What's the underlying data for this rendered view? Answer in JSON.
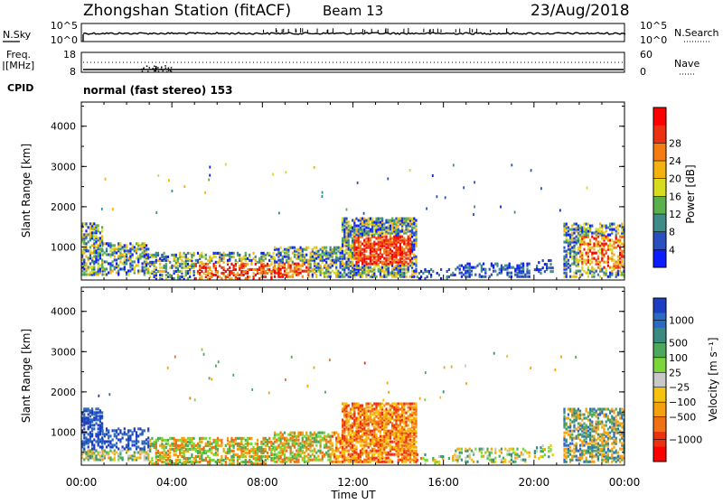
{
  "header": {
    "station": "Zhongshan Station (fitACF)",
    "beam": "Beam 13",
    "date": "23/Aug/2018"
  },
  "panel_nsky": {
    "label": "N.Sky",
    "left_ticks": [
      "10^5",
      "10^0"
    ],
    "right_label": "N.Search",
    "right_ticks": [
      "10^5",
      "10^0"
    ]
  },
  "panel_freq": {
    "label_line1": "Freq.",
    "label_line2": "[MHz]",
    "left_ticks": [
      "18",
      "8"
    ],
    "right_label": "Nave",
    "right_ticks": [
      "60",
      "0"
    ]
  },
  "cpid": {
    "label": "CPID",
    "value": "normal (fast stereo) 153"
  },
  "chart_data": [
    {
      "type": "heatmap",
      "name": "power",
      "xlabel": "Time UT",
      "ylabel": "Slant Range [km]",
      "x_ticks": [
        "00:00",
        "04:00",
        "08:00",
        "12:00",
        "16:00",
        "20:00",
        "00:00"
      ],
      "x_tick_hours": [
        0,
        4,
        8,
        12,
        16,
        20,
        24
      ],
      "xlim_hours": [
        0,
        24
      ],
      "y_ticks": [
        "1000",
        "2000",
        "3000",
        "4000"
      ],
      "y_tick_values": [
        1000,
        2000,
        3000,
        4000
      ],
      "ylim": [
        180,
        4600
      ],
      "colorbar_label": "Power [dB]",
      "colorbar_ticks": [
        "4",
        "8",
        "12",
        "16",
        "20",
        "24",
        "28"
      ],
      "colorbar_colors": [
        "#0a1eff",
        "#2a4fc0",
        "#3e8c8a",
        "#5ab04a",
        "#d8dc1e",
        "#f5b20e",
        "#f47c10",
        "#ec3010",
        "#ff0000"
      ]
    },
    {
      "type": "heatmap",
      "name": "velocity",
      "xlabel": "Time UT",
      "ylabel": "Slant Range [km]",
      "x_ticks": [
        "00:00",
        "04:00",
        "08:00",
        "12:00",
        "16:00",
        "20:00",
        "00:00"
      ],
      "x_tick_hours": [
        0,
        4,
        8,
        12,
        16,
        20,
        24
      ],
      "xlim_hours": [
        0,
        24
      ],
      "y_ticks": [
        "1000",
        "2000",
        "3000",
        "4000"
      ],
      "y_tick_values": [
        1000,
        2000,
        3000,
        4000
      ],
      "ylim": [
        180,
        4600
      ],
      "colorbar_label": "Velocity [m s⁻¹]",
      "colorbar_ticks": [
        "1000",
        "500",
        "100",
        "25",
        "−25",
        "−100",
        "−500",
        "−1000"
      ],
      "colorbar_colors": [
        "#1c3ec4",
        "#2a6ac0",
        "#3a8a80",
        "#4ca85a",
        "#7ad63a",
        "#c8c8c8",
        "#f5c20e",
        "#f5a010",
        "#f07014",
        "#ec3010",
        "#ff0000"
      ]
    }
  ],
  "time_axis_label": "Time UT"
}
